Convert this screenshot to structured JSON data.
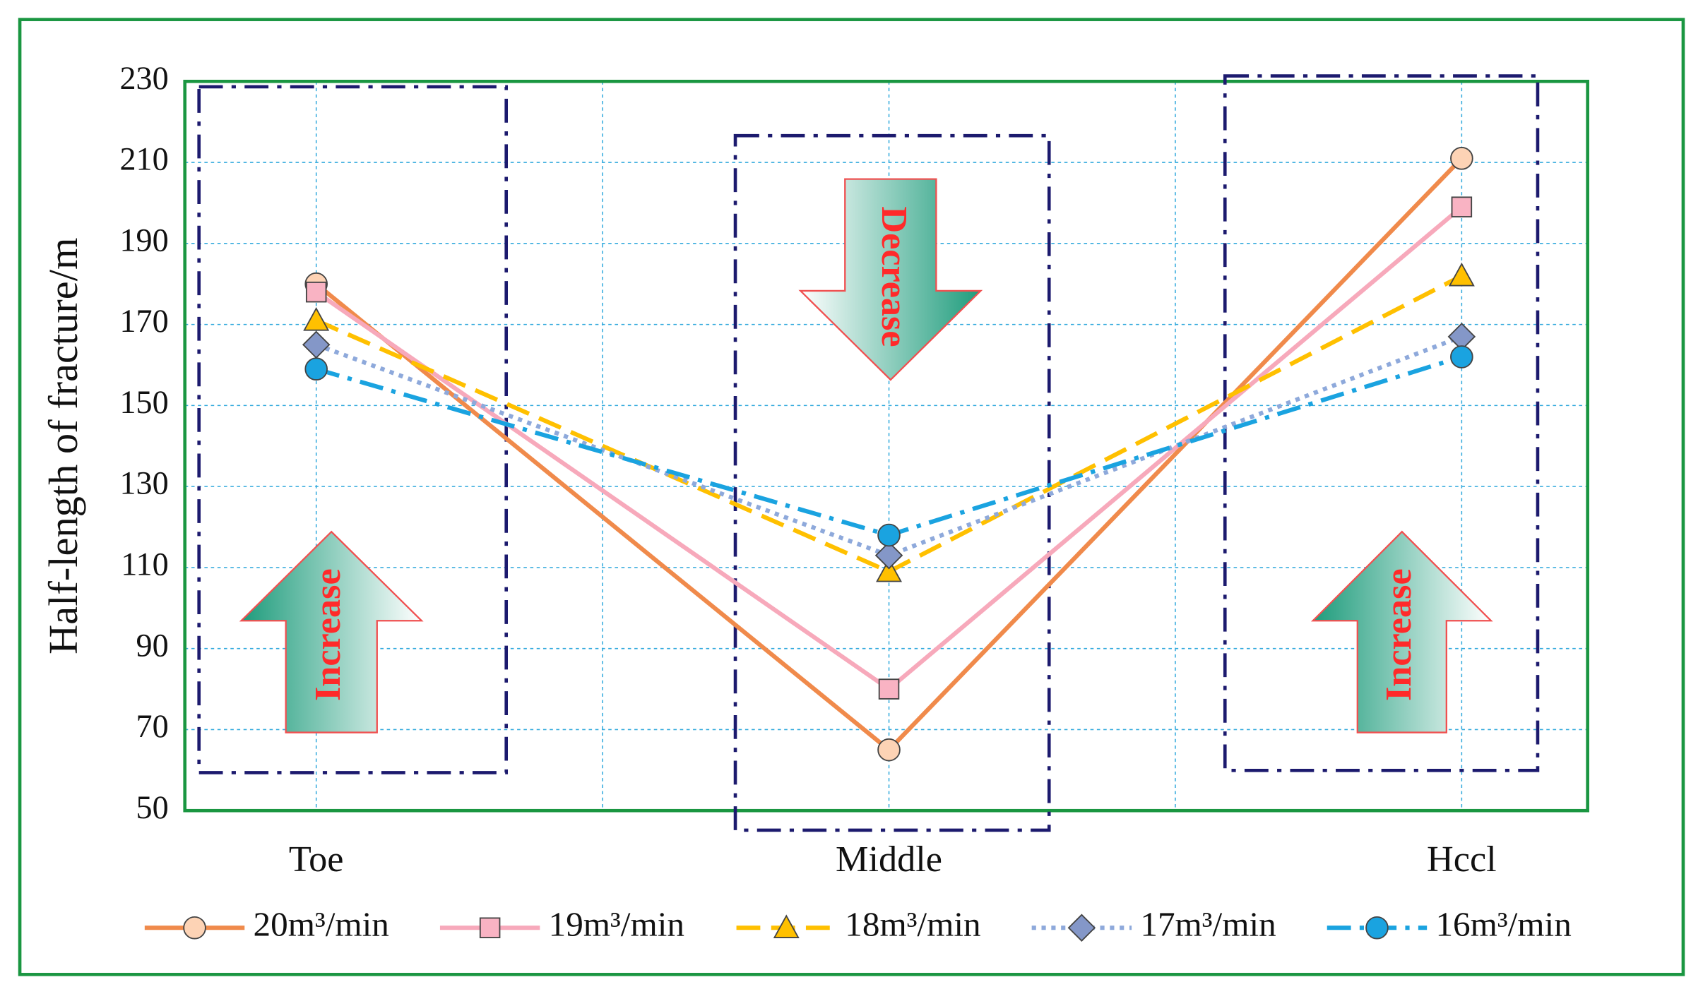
{
  "chart_data": {
    "type": "line",
    "y_label": "Half-length of  fracture/m",
    "categories": [
      "Toe",
      "Middle",
      "Hccl"
    ],
    "series": [
      {
        "name": "20m³/min",
        "color": "#f08a4b",
        "marker": "circle",
        "marker_color": "#fdd3b5",
        "linestyle": "solid",
        "values": [
          180,
          65,
          211
        ]
      },
      {
        "name": "19m³/min",
        "color": "#f7a9bb",
        "marker": "square",
        "marker_color": "#f9b3c3",
        "linestyle": "solid",
        "values": [
          178,
          80,
          199
        ]
      },
      {
        "name": "18m³/min",
        "color": "#ffc000",
        "marker": "triangle",
        "marker_color": "#ffc000",
        "linestyle": "dashed",
        "values": [
          171,
          109,
          182
        ]
      },
      {
        "name": "17m³/min",
        "color": "#8ea9db",
        "marker": "diamond",
        "marker_color": "#8497c8",
        "linestyle": "dotted",
        "values": [
          165,
          113,
          167
        ]
      },
      {
        "name": "16m³/min",
        "color": "#1aa3e0",
        "marker": "circle",
        "marker_color": "#1aa3e0",
        "linestyle": "dashdot",
        "values": [
          159,
          118,
          162
        ]
      }
    ],
    "ylim": [
      50,
      230
    ],
    "yticks": [
      50,
      70,
      90,
      110,
      130,
      150,
      170,
      190,
      210,
      230
    ],
    "grid": true,
    "annotations": [
      "Increase",
      "Decrease",
      "Increase"
    ]
  }
}
